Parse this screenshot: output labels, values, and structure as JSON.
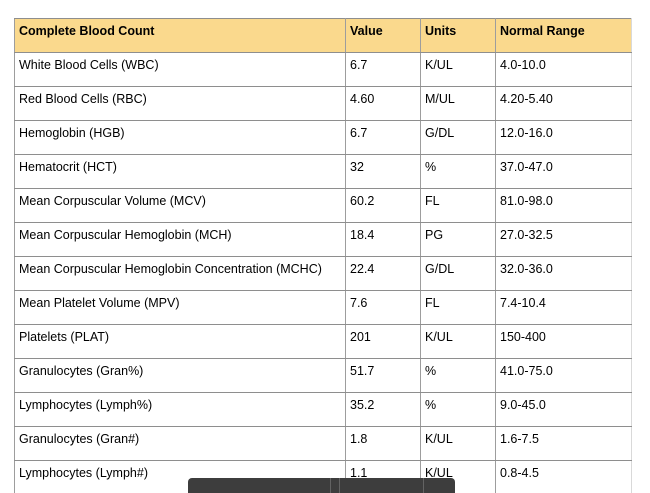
{
  "table": {
    "columns": [
      "Complete Blood Count",
      "Value",
      "Units",
      "Normal Range"
    ],
    "rows": [
      {
        "test": "White Blood Cells (WBC)",
        "value": "6.7",
        "units": "K/UL",
        "range": "4.0-10.0"
      },
      {
        "test": "Red Blood Cells (RBC)",
        "value": "4.60",
        "units": "M/UL",
        "range": "4.20-5.40"
      },
      {
        "test": "Hemoglobin (HGB)",
        "value": "6.7",
        "units": "G/DL",
        "range": "12.0-16.0"
      },
      {
        "test": "Hematocrit (HCT)",
        "value": "32",
        "units": "%",
        "range": "37.0-47.0"
      },
      {
        "test": "Mean Corpuscular Volume (MCV)",
        "value": "60.2",
        "units": "FL",
        "range": "81.0-98.0"
      },
      {
        "test": "Mean Corpuscular Hemoglobin (MCH)",
        "value": "18.4",
        "units": "PG",
        "range": "27.0-32.5"
      },
      {
        "test": "Mean Corpuscular Hemoglobin Concentration (MCHC)",
        "value": "22.4",
        "units": "G/DL",
        "range": "32.0-36.0"
      },
      {
        "test": "Mean Platelet Volume (MPV)",
        "value": "7.6",
        "units": "FL",
        "range": "7.4-10.4"
      },
      {
        "test": "Platelets (PLAT)",
        "value": "201",
        "units": "K/UL",
        "range": "150-400"
      },
      {
        "test": "Granulocytes (Gran%)",
        "value": "51.7",
        "units": "%",
        "range": "41.0-75.0"
      },
      {
        "test": "Lymphocytes (Lymph%)",
        "value": "35.2",
        "units": "%",
        "range": "9.0-45.0"
      },
      {
        "test": "Granulocytes (Gran#)",
        "value": "1.8",
        "units": "K/UL",
        "range": "1.6-7.5"
      },
      {
        "test": "Lymphocytes (Lymph#)",
        "value": "1.1",
        "units": "K/UL",
        "range": "0.8-4.5"
      }
    ]
  },
  "toolbar": {
    "segment_widths": [
      142,
      9,
      84,
      32
    ]
  },
  "colors": {
    "header_bg": "#fad98d",
    "border_horizontal": "#8e8e8e",
    "border_vertical": "#9d9d9d",
    "border_light": "#d9d9d9",
    "bar_bg": "#3d3d3d",
    "bar_divider": "#636363"
  }
}
